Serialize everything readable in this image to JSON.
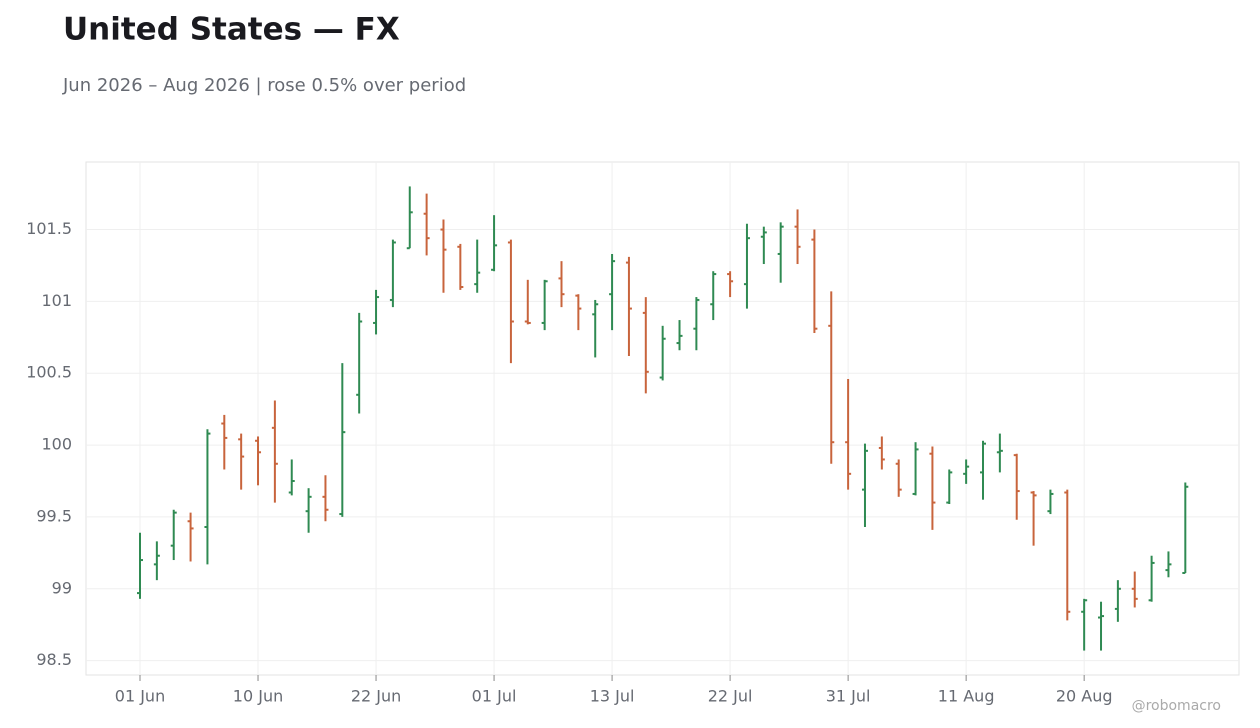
{
  "chart_data": {
    "type": "ohlc",
    "title": "United States — FX",
    "subtitle": "Jun 2026 – Aug 2026 | rose 0.5% over period",
    "footer": "@robomacro",
    "categories": [
      "01 Jun",
      null,
      null,
      null,
      null,
      null,
      null,
      "10 Jun",
      null,
      null,
      null,
      null,
      null,
      null,
      "22 Jun",
      null,
      null,
      null,
      null,
      null,
      null,
      "01 Jul",
      null,
      null,
      null,
      null,
      null,
      null,
      "13 Jul",
      null,
      null,
      null,
      null,
      null,
      null,
      "22 Jul",
      null,
      null,
      null,
      null,
      null,
      null,
      "31 Jul",
      null,
      null,
      null,
      null,
      null,
      null,
      "11 Aug",
      null,
      null,
      null,
      null,
      null,
      null,
      "20 Aug",
      null,
      null,
      null,
      null,
      null,
      null
    ],
    "open": [
      98.97,
      99.17,
      99.3,
      99.47,
      99.43,
      100.15,
      100.04,
      100.03,
      100.12,
      99.67,
      99.54,
      99.64,
      99.52,
      100.35,
      100.85,
      101.01,
      101.37,
      101.61,
      101.5,
      101.38,
      101.12,
      101.22,
      101.41,
      100.86,
      100.85,
      101.16,
      101.04,
      100.91,
      101.05,
      101.27,
      100.92,
      100.47,
      100.71,
      100.81,
      100.98,
      101.19,
      101.12,
      101.45,
      101.33,
      101.52,
      101.43,
      100.83,
      100.02,
      99.69,
      99.98,
      99.87,
      99.66,
      99.94,
      99.6,
      99.8,
      99.81,
      99.95,
      99.93,
      99.67,
      99.54,
      99.67,
      98.84,
      98.8,
      98.86,
      99.0,
      98.92,
      99.13,
      99.11
    ],
    "high": [
      99.39,
      99.33,
      99.55,
      99.53,
      100.11,
      100.21,
      100.08,
      100.06,
      100.31,
      99.9,
      99.7,
      99.79,
      100.57,
      100.92,
      101.08,
      101.43,
      101.8,
      101.75,
      101.57,
      101.4,
      101.43,
      101.6,
      101.43,
      101.15,
      101.15,
      101.28,
      101.05,
      101.01,
      101.33,
      101.31,
      101.03,
      100.83,
      100.87,
      101.03,
      101.21,
      101.21,
      101.54,
      101.52,
      101.55,
      101.64,
      101.5,
      101.07,
      100.46,
      100.01,
      100.06,
      99.9,
      100.02,
      99.99,
      99.83,
      99.9,
      100.03,
      100.08,
      99.94,
      99.68,
      99.69,
      99.69,
      98.93,
      98.91,
      99.06,
      99.12,
      99.23,
      99.26,
      99.74
    ],
    "low": [
      98.93,
      99.06,
      99.2,
      99.19,
      99.17,
      99.83,
      99.69,
      99.72,
      99.6,
      99.65,
      99.39,
      99.47,
      99.5,
      100.22,
      100.77,
      100.96,
      101.37,
      101.32,
      101.06,
      101.08,
      101.06,
      101.21,
      100.57,
      100.84,
      100.8,
      100.96,
      100.8,
      100.61,
      100.8,
      100.62,
      100.36,
      100.45,
      100.66,
      100.66,
      100.87,
      101.03,
      100.95,
      101.26,
      101.13,
      101.26,
      100.78,
      99.87,
      99.69,
      99.43,
      99.83,
      99.64,
      99.65,
      99.41,
      99.59,
      99.73,
      99.62,
      99.81,
      99.48,
      99.3,
      99.52,
      98.78,
      98.57,
      98.57,
      98.77,
      98.87,
      98.91,
      99.08,
      99.11
    ],
    "close": [
      99.2,
      99.23,
      99.53,
      99.42,
      100.08,
      100.05,
      99.92,
      99.95,
      99.87,
      99.75,
      99.64,
      99.55,
      100.09,
      100.86,
      101.03,
      101.41,
      101.62,
      101.44,
      101.36,
      101.1,
      101.2,
      101.39,
      100.86,
      100.85,
      101.14,
      101.05,
      100.95,
      100.98,
      101.28,
      100.95,
      100.51,
      100.74,
      100.76,
      101.01,
      101.19,
      101.14,
      101.44,
      101.48,
      101.52,
      101.38,
      100.81,
      100.02,
      99.8,
      99.96,
      99.9,
      99.69,
      99.97,
      99.6,
      99.81,
      99.85,
      100.01,
      99.96,
      99.68,
      99.65,
      99.66,
      98.84,
      98.92,
      98.81,
      99.0,
      98.93,
      99.18,
      99.17,
      99.71
    ],
    "up_color": "#2f8a52",
    "down_color": "#c8643c",
    "ylim": [
      98.4,
      101.97
    ],
    "yticks": [
      98.5,
      99,
      99.5,
      100,
      100.5,
      101,
      101.5
    ],
    "grid": true
  }
}
